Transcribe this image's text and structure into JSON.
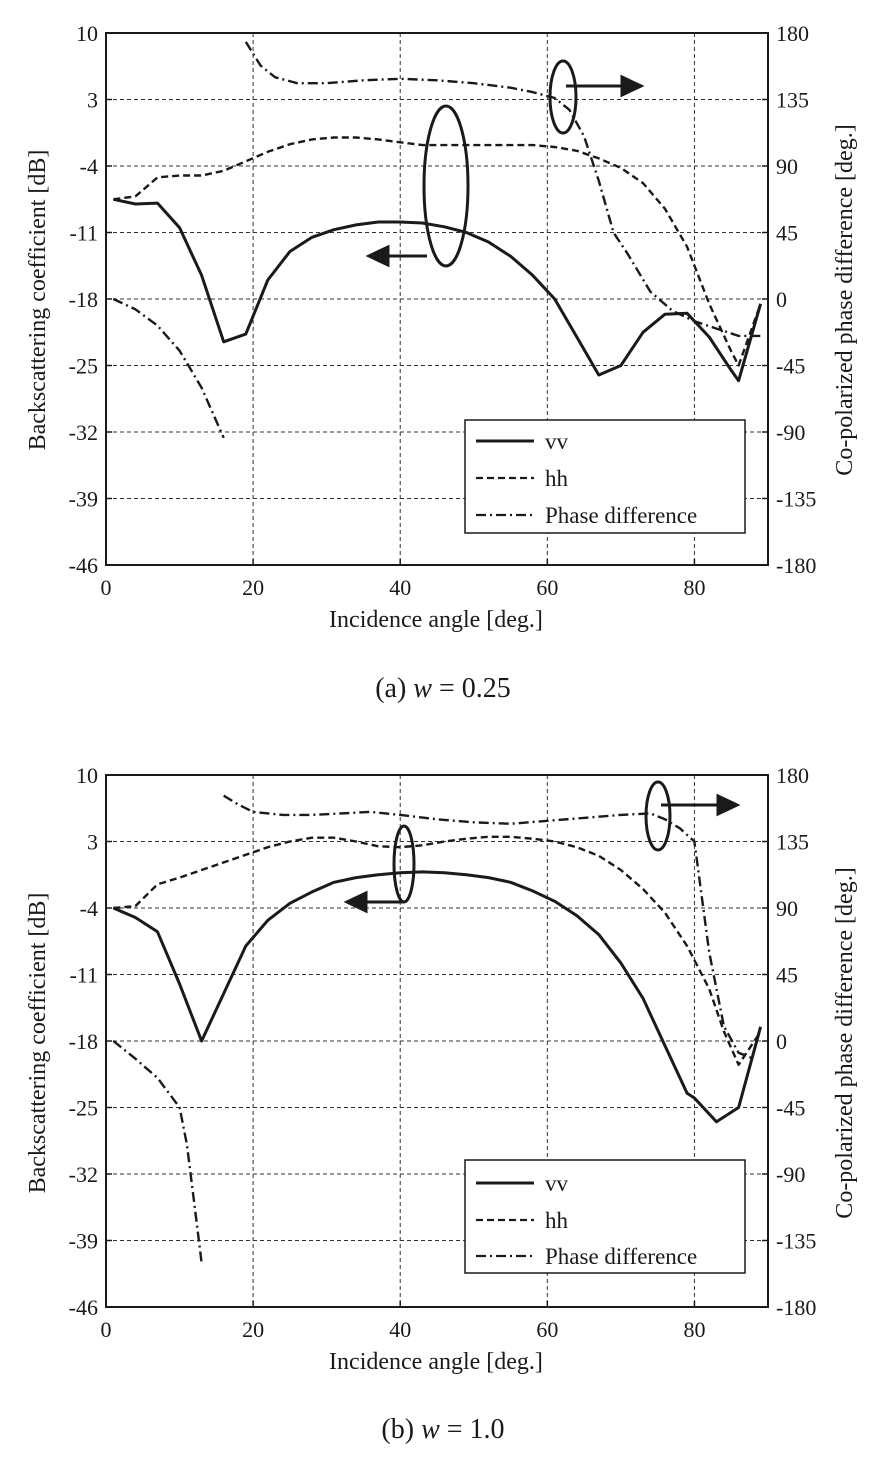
{
  "chart_data": [
    {
      "type": "line",
      "caption": {
        "label": "(a) ",
        "var": "w",
        "rest": " = 0.25"
      },
      "xlabel": "Incidence angle [deg.]",
      "ylabel": "Backscattering coefficient [dB]",
      "y2label": "Co-polarized phase difference [deg.]",
      "xlim": [
        0,
        90
      ],
      "ylim": [
        -46,
        10
      ],
      "y2lim": [
        -180,
        180
      ],
      "xticks": [
        0,
        20,
        40,
        60,
        80
      ],
      "yticks": [
        10,
        3,
        -4,
        -11,
        -18,
        -25,
        -32,
        -39,
        -46
      ],
      "y2ticks": [
        180,
        135,
        90,
        45,
        0,
        -45,
        -90,
        -135,
        -180
      ],
      "grid": true,
      "legend_position": "bottom-right",
      "series": [
        {
          "name": "vv",
          "axis": "left",
          "style": "solid",
          "x": [
            1,
            4,
            7,
            10,
            13,
            16,
            19,
            22,
            25,
            28,
            31,
            34,
            37,
            40,
            43,
            46,
            49,
            52,
            55,
            58,
            61,
            64,
            67,
            70,
            73,
            76,
            79,
            82,
            85,
            86,
            89
          ],
          "y": [
            -7.5,
            -8,
            -7.9,
            -10.5,
            -15.5,
            -22.5,
            -21.7,
            -16,
            -13,
            -11.5,
            -10.7,
            -10.2,
            -9.9,
            -9.9,
            -10,
            -10.4,
            -11,
            -12,
            -13.5,
            -15.5,
            -18,
            -22,
            -26,
            -25,
            -21.5,
            -19.6,
            -19.5,
            -22,
            -25.5,
            -26.6,
            -18.5
          ]
        },
        {
          "name": "hh",
          "axis": "left",
          "style": "dashed",
          "x": [
            1,
            4,
            7,
            10,
            13,
            16,
            19,
            22,
            25,
            28,
            31,
            34,
            37,
            40,
            43,
            46,
            49,
            52,
            55,
            58,
            61,
            64,
            67,
            70,
            73,
            76,
            79,
            82,
            85,
            86,
            89
          ],
          "y": [
            -7.5,
            -7.2,
            -5.2,
            -5,
            -5,
            -4.5,
            -3.5,
            -2.5,
            -1.7,
            -1.2,
            -1,
            -1,
            -1.2,
            -1.5,
            -1.8,
            -1.8,
            -1.8,
            -1.8,
            -1.8,
            -1.8,
            -2,
            -2.4,
            -3.2,
            -4.2,
            -5.8,
            -8.5,
            -12.5,
            -18.5,
            -23.5,
            -25,
            -18.5
          ]
        },
        {
          "name": "Phase difference",
          "axis": "right",
          "style": "dashdot",
          "segments": [
            {
              "x": [
                1,
                4,
                7,
                10,
                13,
                16
              ],
              "y": [
                0,
                -7,
                -18,
                -35,
                -60,
                -94
              ]
            },
            {
              "x": [
                19,
                21,
                23,
                26,
                30,
                35,
                40,
                45,
                50,
                55,
                58,
                61,
                63,
                65,
                67,
                69,
                71,
                74,
                77,
                80,
                83,
                86,
                89
              ],
              "y": [
                174,
                158,
                150,
                146,
                146,
                148,
                149,
                148,
                146,
                143,
                140,
                136,
                128,
                110,
                80,
                45,
                30,
                5,
                -8,
                -15,
                -20,
                -25,
                -25
              ]
            }
          ]
        }
      ]
    },
    {
      "type": "line",
      "caption": {
        "label": "(b) ",
        "var": "w",
        "rest": " = 1.0"
      },
      "xlabel": "Incidence angle [deg.]",
      "ylabel": "Backscattering coefficient [dB]",
      "y2label": "Co-polarized phase difference [deg.]",
      "xlim": [
        0,
        90
      ],
      "ylim": [
        -46,
        10
      ],
      "y2lim": [
        -180,
        180
      ],
      "xticks": [
        0,
        20,
        40,
        60,
        80
      ],
      "yticks": [
        10,
        3,
        -4,
        -11,
        -18,
        -25,
        -32,
        -39,
        -46
      ],
      "y2ticks": [
        180,
        135,
        90,
        45,
        0,
        -45,
        -90,
        -135,
        -180
      ],
      "grid": true,
      "legend_position": "bottom-right",
      "series": [
        {
          "name": "vv",
          "axis": "left",
          "style": "solid",
          "x": [
            1,
            4,
            7,
            10,
            13,
            16,
            19,
            22,
            25,
            28,
            31,
            34,
            37,
            40,
            43,
            46,
            49,
            52,
            55,
            58,
            61,
            64,
            67,
            70,
            73,
            76,
            79,
            80,
            83,
            86,
            89
          ],
          "y": [
            -4,
            -5,
            -6.5,
            -12,
            -18,
            -13,
            -8,
            -5.3,
            -3.5,
            -2.3,
            -1.3,
            -0.8,
            -0.5,
            -0.3,
            -0.2,
            -0.3,
            -0.5,
            -0.8,
            -1.3,
            -2.2,
            -3.3,
            -4.8,
            -6.8,
            -9.8,
            -13.5,
            -18.5,
            -23.5,
            -24,
            -26.5,
            -25,
            -16.5
          ]
        },
        {
          "name": "hh",
          "axis": "left",
          "style": "dashed",
          "x": [
            1,
            4,
            7,
            10,
            13,
            16,
            19,
            22,
            25,
            28,
            31,
            34,
            37,
            40,
            43,
            46,
            49,
            52,
            55,
            58,
            61,
            64,
            67,
            70,
            73,
            76,
            79,
            82,
            84,
            86,
            89
          ],
          "y": [
            -4,
            -3.8,
            -1.5,
            -0.8,
            0,
            0.8,
            1.6,
            2.4,
            3,
            3.4,
            3.4,
            3,
            2.5,
            2.4,
            2.6,
            3,
            3.3,
            3.5,
            3.5,
            3.3,
            3,
            2.4,
            1.5,
            0,
            -2,
            -4.5,
            -8,
            -12.5,
            -17,
            -20.5,
            -17
          ]
        },
        {
          "name": "Phase difference",
          "axis": "right",
          "style": "dashdot",
          "segments": [
            {
              "x": [
                1,
                4,
                7,
                10,
                11,
                12,
                13
              ],
              "y": [
                0,
                -12,
                -25,
                -45,
                -70,
                -110,
                -150
              ]
            },
            {
              "x": [
                16,
                18,
                20,
                24,
                28,
                32,
                36,
                40,
                45,
                50,
                55,
                60,
                65,
                70,
                74,
                76,
                78,
                80,
                82,
                84,
                86,
                88
              ],
              "y": [
                166,
                160,
                155,
                153,
                153,
                154,
                155,
                153,
                150,
                148,
                147,
                149,
                151,
                153,
                154,
                150,
                144,
                135,
                60,
                10,
                -8,
                -12
              ]
            }
          ]
        }
      ]
    }
  ],
  "legend": {
    "vv": "vv",
    "hh": "hh",
    "phase": "Phase difference"
  }
}
